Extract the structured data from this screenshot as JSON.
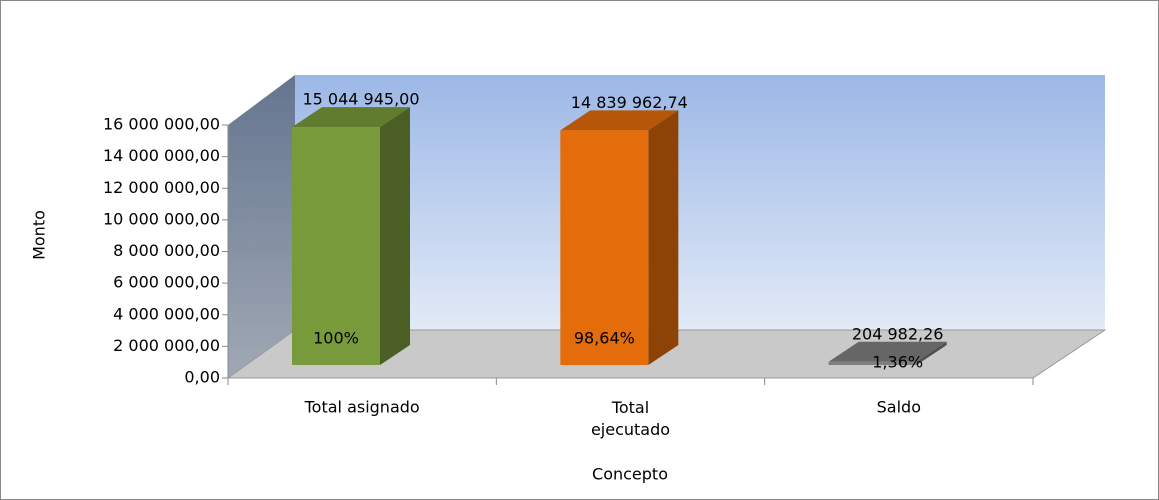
{
  "chart_data": {
    "type": "bar3d",
    "categories": [
      "Total asignado",
      "Total ejecutado",
      "Saldo"
    ],
    "values": [
      15044945.0,
      14839962.74,
      204982.26
    ],
    "value_labels": [
      "15 044 945,00",
      "14 839 962,74",
      "204 982,26"
    ],
    "percentages": [
      100,
      98.64,
      1.36
    ],
    "percentage_labels": [
      "100%",
      "98,64%",
      "1,36%"
    ],
    "colors": [
      "#799a3b",
      "#e46c0a",
      "#7f7f7f"
    ],
    "y_label": "Monto",
    "x_label": "Concepto",
    "ylim": [
      0,
      16000000
    ],
    "yticks": [
      {
        "value": 0,
        "label": "0,00"
      },
      {
        "value": 2000000,
        "label": "2 000 000,00"
      },
      {
        "value": 4000000,
        "label": "4 000 000,00"
      },
      {
        "value": 6000000,
        "label": "6 000 000,00"
      },
      {
        "value": 8000000,
        "label": "8 000 000,00"
      },
      {
        "value": 10000000,
        "label": "10 000 000,00"
      },
      {
        "value": 12000000,
        "label": "12 000 000,00"
      },
      {
        "value": 14000000,
        "label": "14 000 000,00"
      },
      {
        "value": 16000000,
        "label": "16 000 000,00"
      }
    ]
  }
}
